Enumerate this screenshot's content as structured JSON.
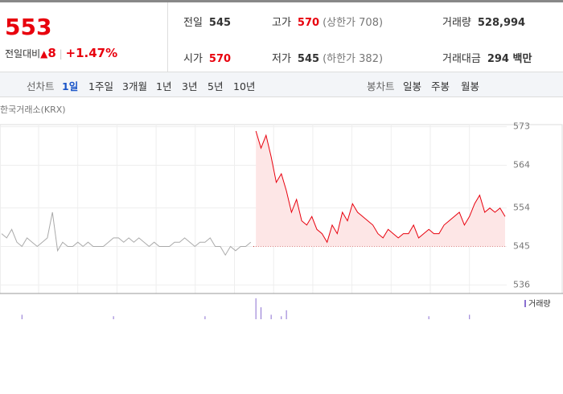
{
  "header": {
    "price": 553,
    "change_label": "전일대비",
    "change": 8,
    "rate": "+1.47%"
  },
  "info": [
    {
      "label": "전일",
      "value": 545
    },
    {
      "label": "고가",
      "value": 570,
      "sub": "(상한가 708)"
    },
    {
      "label": "거래량",
      "value": "528,994"
    },
    {
      "label": "시가",
      "value": 570
    },
    {
      "label": "저가",
      "value": 545,
      "sub": "(하한가 382)"
    },
    {
      "label": "거래대금",
      "value": "294 백만"
    }
  ],
  "tabs": {
    "line": {
      "label": "선차트",
      "items": [
        "1일",
        "1주일",
        "3개월",
        "1년",
        "3년",
        "5년",
        "10년"
      ],
      "active": 0
    },
    "candle": {
      "label": "봉차트",
      "items": [
        "일봉",
        "주봉",
        "월봉"
      ]
    }
  },
  "chart_data": {
    "type": "line",
    "source": "한국거래소(KRX)",
    "ylim": [
      534,
      573.5
    ],
    "yticks": [
      573,
      564,
      554,
      545,
      536
    ],
    "grid": true,
    "reference_line": 545,
    "series": [
      {
        "color": "#aaaaaa",
        "values": [
          548,
          547,
          549,
          546,
          545,
          547,
          546,
          545,
          546,
          547,
          553,
          544,
          546,
          545,
          545,
          546,
          545,
          546,
          545,
          545,
          545,
          546,
          547,
          547,
          546,
          547,
          546,
          547,
          546,
          545,
          546,
          545,
          545,
          545,
          546,
          546,
          547,
          546,
          545,
          546,
          546,
          547,
          545,
          545,
          543,
          545,
          544,
          545,
          545,
          546,
          null,
          null,
          null,
          null,
          null,
          null,
          null,
          null,
          null,
          null,
          null,
          null,
          null,
          null,
          null,
          null,
          null,
          null,
          null,
          null,
          null,
          null,
          null,
          null,
          null,
          null,
          null,
          null,
          null,
          null,
          null,
          null,
          null,
          null,
          null,
          null,
          null,
          null,
          null,
          null,
          null,
          null,
          null,
          null,
          null,
          null,
          null,
          null,
          null,
          null
        ]
      },
      {
        "color": "#e8000d",
        "values": [
          null,
          null,
          null,
          null,
          null,
          null,
          null,
          null,
          null,
          null,
          null,
          null,
          null,
          null,
          null,
          null,
          null,
          null,
          null,
          null,
          null,
          null,
          null,
          null,
          null,
          null,
          null,
          null,
          null,
          null,
          null,
          null,
          null,
          null,
          null,
          null,
          null,
          null,
          null,
          null,
          null,
          null,
          null,
          null,
          null,
          null,
          null,
          null,
          null,
          null,
          572,
          568,
          571,
          566,
          560,
          562,
          558,
          553,
          556,
          551,
          550,
          552,
          549,
          548,
          546,
          550,
          548,
          553,
          551,
          555,
          553,
          552,
          551,
          550,
          548,
          547,
          549,
          548,
          547,
          548,
          548,
          550,
          547,
          548,
          549,
          548,
          548,
          550,
          551,
          552,
          553,
          550,
          552,
          555,
          557,
          553,
          554,
          553,
          554,
          552
        ]
      }
    ],
    "volume": {
      "name": "거래량",
      "color": "#8a6fd1",
      "x": [
        4,
        22,
        40,
        50,
        51,
        53,
        55,
        56,
        84,
        92
      ],
      "values": [
        3,
        2,
        2,
        14,
        8,
        3,
        2,
        6,
        2,
        3
      ]
    }
  }
}
